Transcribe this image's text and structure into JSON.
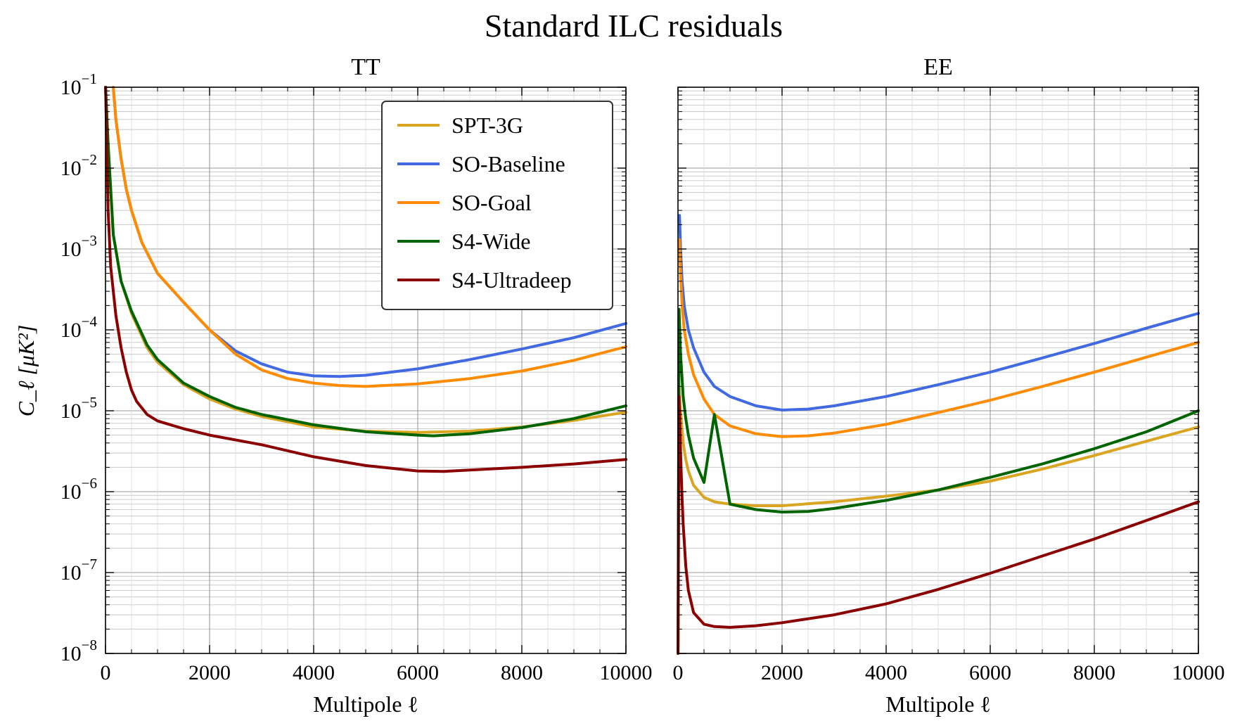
{
  "suptitle": "Standard ILC residuals",
  "ylabel": "C_ℓ [μK²]",
  "xlabel": "Multipole ℓ",
  "legend": [
    {
      "name": "SPT-3G",
      "color": "#DAA520"
    },
    {
      "name": "SO-Baseline",
      "color": "#4169E1"
    },
    {
      "name": "SO-Goal",
      "color": "#FF8C00"
    },
    {
      "name": "S4-Wide",
      "color": "#006400"
    },
    {
      "name": "S4-Ultradeep",
      "color": "#8B0000"
    }
  ],
  "chart_data": [
    {
      "type": "line",
      "title": "TT",
      "xlabel": "Multipole ℓ",
      "ylabel": "C_ℓ [μK²]",
      "xlim": [
        0,
        10000
      ],
      "ylim": [
        1e-08,
        0.1
      ],
      "yscale": "log",
      "grid": true,
      "legend_position": "top-right",
      "xticks": [
        0,
        2000,
        4000,
        6000,
        8000,
        10000
      ],
      "yticks": [
        {
          "base": "10",
          "exp": "−8"
        },
        {
          "base": "10",
          "exp": "−7"
        },
        {
          "base": "10",
          "exp": "−6"
        },
        {
          "base": "10",
          "exp": "−5"
        },
        {
          "base": "10",
          "exp": "−4"
        },
        {
          "base": "10",
          "exp": "−3"
        },
        {
          "base": "10",
          "exp": "−2"
        },
        {
          "base": "10",
          "exp": "−1"
        }
      ],
      "series": [
        {
          "name": "SPT-3G",
          "color": "#DAA520",
          "x": [
            2,
            50,
            150,
            300,
            500,
            800,
            1000,
            1500,
            2000,
            2500,
            3000,
            4000,
            5000,
            6000,
            7000,
            8000,
            9000,
            10000
          ],
          "y": [
            0.1,
            0.02,
            0.0015,
            0.0004,
            0.00016,
            6e-05,
            4e-05,
            2.1e-05,
            1.4e-05,
            1.05e-05,
            8.5e-06,
            6.3e-06,
            5.6e-06,
            5.4e-06,
            5.6e-06,
            6.3e-06,
            7.6e-06,
            9.6e-06
          ]
        },
        {
          "name": "SO-Baseline",
          "color": "#4169E1",
          "x": [
            150,
            200,
            300,
            400,
            500,
            700,
            1000,
            1500,
            2000,
            2500,
            3000,
            3500,
            4000,
            4500,
            5000,
            6000,
            7000,
            8000,
            9000,
            10000
          ],
          "y": [
            0.1,
            0.04,
            0.013,
            0.0055,
            0.003,
            0.0012,
            0.0005,
            0.00022,
            0.0001,
            5.5e-05,
            3.8e-05,
            3e-05,
            2.7e-05,
            2.65e-05,
            2.75e-05,
            3.3e-05,
            4.3e-05,
            5.8e-05,
            8e-05,
            0.00012
          ]
        },
        {
          "name": "SO-Goal",
          "color": "#FF8C00",
          "x": [
            150,
            200,
            300,
            400,
            500,
            700,
            1000,
            1500,
            2000,
            2500,
            3000,
            3500,
            4000,
            4500,
            5000,
            6000,
            7000,
            8000,
            9000,
            10000
          ],
          "y": [
            0.1,
            0.04,
            0.013,
            0.0055,
            0.003,
            0.0012,
            0.0005,
            0.00022,
            0.0001,
            5e-05,
            3.2e-05,
            2.5e-05,
            2.2e-05,
            2.05e-05,
            2e-05,
            2.15e-05,
            2.5e-05,
            3.1e-05,
            4.2e-05,
            6.2e-05
          ]
        },
        {
          "name": "S4-Wide",
          "color": "#006400",
          "x": [
            2,
            50,
            150,
            300,
            500,
            800,
            1000,
            1500,
            2000,
            2500,
            3000,
            4000,
            5000,
            6000,
            6300,
            7000,
            8000,
            9000,
            10000
          ],
          "y": [
            0.1,
            0.02,
            0.0015,
            0.0004,
            0.00017,
            6.5e-05,
            4.3e-05,
            2.2e-05,
            1.5e-05,
            1.1e-05,
            9e-06,
            6.7e-06,
            5.5e-06,
            5e-06,
            4.9e-06,
            5.2e-06,
            6.2e-06,
            8e-06,
            1.15e-05
          ]
        },
        {
          "name": "S4-Ultradeep",
          "color": "#8B0000",
          "x": [
            2,
            50,
            100,
            200,
            300,
            400,
            500,
            600,
            800,
            1000,
            1500,
            2000,
            3000,
            4000,
            5000,
            6000,
            6500,
            7000,
            8000,
            9000,
            10000
          ],
          "y": [
            0.1,
            0.003,
            0.0006,
            0.00015,
            6e-05,
            3e-05,
            1.8e-05,
            1.3e-05,
            9e-06,
            7.5e-06,
            6e-06,
            5e-06,
            3.8e-06,
            2.7e-06,
            2.1e-06,
            1.8e-06,
            1.78e-06,
            1.85e-06,
            2e-06,
            2.2e-06,
            2.5e-06
          ]
        }
      ]
    },
    {
      "type": "line",
      "title": "EE",
      "xlabel": "Multipole ℓ",
      "xlim": [
        0,
        10000
      ],
      "ylim": [
        1e-08,
        0.1
      ],
      "yscale": "log",
      "grid": true,
      "xticks": [
        0,
        2000,
        4000,
        6000,
        8000,
        10000
      ],
      "series": [
        {
          "name": "SPT-3G",
          "color": "#DAA520",
          "x": [
            2,
            20,
            50,
            100,
            150,
            200,
            300,
            500,
            700,
            1000,
            1500,
            2000,
            3000,
            4000,
            5000,
            6000,
            7000,
            8000,
            9000,
            10000
          ],
          "y": [
            1e-08,
            2e-05,
            1e-05,
            4e-06,
            2.5e-06,
            1.8e-06,
            1.2e-06,
            8.5e-07,
            7.5e-07,
            7e-07,
            6.7e-07,
            6.7e-07,
            7.5e-07,
            8.8e-07,
            1.05e-06,
            1.35e-06,
            1.9e-06,
            2.8e-06,
            4.2e-06,
            6.3e-06
          ]
        },
        {
          "name": "SO-Baseline",
          "color": "#4169E1",
          "x": [
            30,
            50,
            80,
            120,
            200,
            300,
            500,
            700,
            1000,
            1500,
            2000,
            2500,
            3000,
            4000,
            5000,
            6000,
            7000,
            8000,
            9000,
            10000
          ],
          "y": [
            0.0026,
            0.001,
            0.0004,
            0.0002,
            0.0001,
            6e-05,
            3e-05,
            2e-05,
            1.5e-05,
            1.15e-05,
            1.02e-05,
            1.05e-05,
            1.15e-05,
            1.5e-05,
            2.1e-05,
            3e-05,
            4.5e-05,
            6.8e-05,
            0.000105,
            0.00016
          ]
        },
        {
          "name": "SO-Goal",
          "color": "#FF8C00",
          "x": [
            30,
            50,
            80,
            120,
            200,
            300,
            500,
            700,
            1000,
            1500,
            2000,
            2500,
            3000,
            4000,
            5000,
            6000,
            7000,
            8000,
            9000,
            10000
          ],
          "y": [
            0.0013,
            0.0005,
            0.0002,
            0.0001,
            5e-05,
            2.8e-05,
            1.4e-05,
            9e-06,
            6.5e-06,
            5.2e-06,
            4.8e-06,
            4.9e-06,
            5.3e-06,
            6.8e-06,
            9.5e-06,
            1.35e-05,
            2e-05,
            3e-05,
            4.6e-05,
            7e-05
          ]
        },
        {
          "name": "S4-Wide",
          "color": "#006400",
          "x": [
            2,
            20,
            50,
            100,
            150,
            200,
            300,
            500,
            700,
            1000,
            1500,
            2000,
            2500,
            3000,
            4000,
            5000,
            6000,
            7000,
            8000,
            9000,
            10000
          ],
          "y": [
            1e-08,
            0.00018,
            5e-05,
            1.5e-05,
            8e-06,
            5e-06,
            2.6e-06,
            1.3e-06,
            9e-06,
            7e-07,
            6e-07,
            5.6e-07,
            5.7e-07,
            6.2e-07,
            7.8e-07,
            1.05e-06,
            1.5e-06,
            2.2e-06,
            3.4e-06,
            5.5e-06,
            1e-05
          ]
        },
        {
          "name": "S4-Ultradeep",
          "color": "#8B0000",
          "x": [
            2,
            20,
            50,
            80,
            100,
            150,
            200,
            300,
            500,
            700,
            1000,
            1500,
            2000,
            3000,
            4000,
            5000,
            6000,
            7000,
            8000,
            9000,
            10000
          ],
          "y": [
            1e-08,
            1.5e-05,
            3e-06,
            8e-07,
            4e-07,
            1.2e-07,
            6e-08,
            3.2e-08,
            2.3e-08,
            2.15e-08,
            2.1e-08,
            2.2e-08,
            2.4e-08,
            3e-08,
            4.1e-08,
            6.2e-08,
            9.8e-08,
            1.6e-07,
            2.6e-07,
            4.4e-07,
            7.5e-07
          ]
        }
      ]
    }
  ]
}
